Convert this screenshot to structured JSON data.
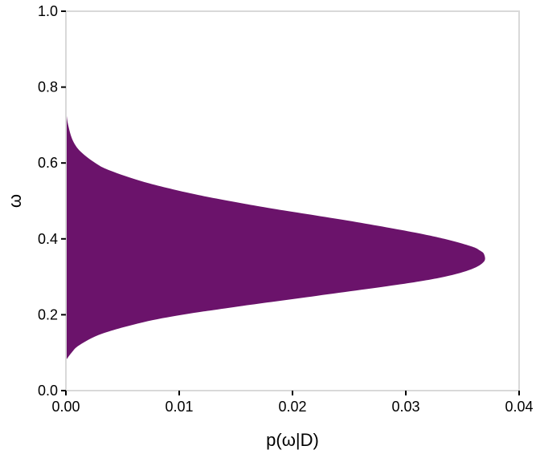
{
  "chart_data": {
    "type": "area",
    "orientation": "horizontal-density",
    "title": "",
    "xlabel": "p(ω|D)",
    "ylabel": "ω",
    "xlim": [
      0,
      0.04
    ],
    "ylim": [
      0,
      1
    ],
    "xticks": [
      "0.00",
      "0.01",
      "0.02",
      "0.03",
      "0.04"
    ],
    "yticks": [
      "0.0",
      "0.2",
      "0.4",
      "0.6",
      "0.8",
      "1.0"
    ],
    "grid": false,
    "legend": "none",
    "fill_color": "#6b136b",
    "panel_border_color": "#d9d9d9",
    "series": [
      {
        "omega": [
          0.08,
          0.1,
          0.12,
          0.15,
          0.18,
          0.2,
          0.22,
          0.25,
          0.28,
          0.3,
          0.32,
          0.34,
          0.36,
          0.37,
          0.38,
          0.4,
          0.42,
          0.45,
          0.48,
          0.5,
          0.52,
          0.55,
          0.58,
          0.6,
          0.63,
          0.66,
          0.7,
          0.73,
          0.75
        ],
        "density": [
          0.0,
          0.0005,
          0.0012,
          0.0032,
          0.0068,
          0.0103,
          0.0148,
          0.0222,
          0.0295,
          0.0334,
          0.0358,
          0.0369,
          0.0369,
          0.0365,
          0.0358,
          0.0334,
          0.0302,
          0.0245,
          0.0182,
          0.0144,
          0.011,
          0.0069,
          0.0039,
          0.0026,
          0.0013,
          0.0006,
          0.0002,
          5e-05,
          0.0
        ]
      }
    ]
  }
}
